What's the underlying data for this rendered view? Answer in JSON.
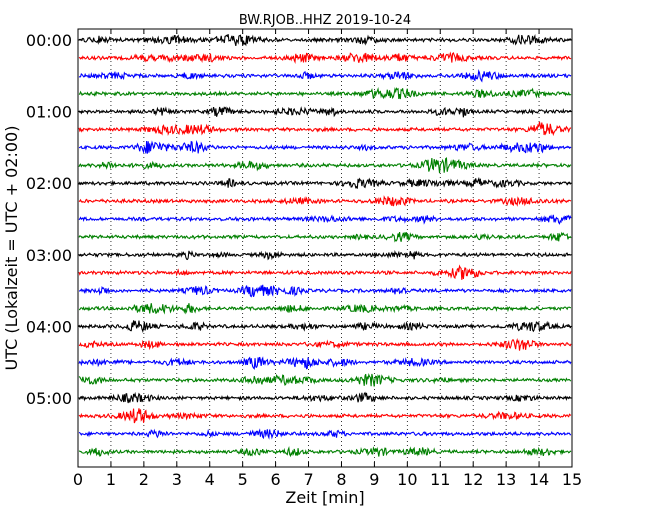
{
  "chart_data": {
    "type": "line",
    "title": "BW.RJOB..HHZ 2019-10-24",
    "xlabel": "Zeit  [min]",
    "ylabel": "UTC (Lokalzeit = UTC + 02:00)",
    "xlim": [
      0,
      15
    ],
    "x_ticks": [
      0,
      1,
      2,
      3,
      4,
      5,
      6,
      7,
      8,
      9,
      10,
      11,
      12,
      13,
      14,
      15
    ],
    "x_tick_labels": [
      "0",
      "1",
      "2",
      "3",
      "4",
      "5",
      "6",
      "7",
      "8",
      "9",
      "10",
      "11",
      "12",
      "13",
      "14",
      "15"
    ],
    "y_tick_labels": [
      "00:00",
      "01:00",
      "02:00",
      "03:00",
      "04:00",
      "05:00"
    ],
    "grid": "vertical dotted lines at each minute",
    "trace_colors": [
      "#000000",
      "#ff0000",
      "#0000ff",
      "#008000"
    ],
    "trace_count": 24,
    "series": [
      {
        "start": "00:00",
        "color": "#000000"
      },
      {
        "start": "00:15",
        "color": "#ff0000"
      },
      {
        "start": "00:30",
        "color": "#0000ff"
      },
      {
        "start": "00:45",
        "color": "#008000"
      },
      {
        "start": "01:00",
        "color": "#000000"
      },
      {
        "start": "01:15",
        "color": "#ff0000"
      },
      {
        "start": "01:30",
        "color": "#0000ff"
      },
      {
        "start": "01:45",
        "color": "#008000"
      },
      {
        "start": "02:00",
        "color": "#000000"
      },
      {
        "start": "02:15",
        "color": "#ff0000"
      },
      {
        "start": "02:30",
        "color": "#0000ff"
      },
      {
        "start": "02:45",
        "color": "#008000"
      },
      {
        "start": "03:00",
        "color": "#000000"
      },
      {
        "start": "03:15",
        "color": "#ff0000"
      },
      {
        "start": "03:30",
        "color": "#0000ff"
      },
      {
        "start": "03:45",
        "color": "#008000"
      },
      {
        "start": "04:00",
        "color": "#000000"
      },
      {
        "start": "04:15",
        "color": "#ff0000"
      },
      {
        "start": "04:30",
        "color": "#0000ff"
      },
      {
        "start": "04:45",
        "color": "#008000"
      },
      {
        "start": "05:00",
        "color": "#000000"
      },
      {
        "start": "05:15",
        "color": "#ff0000"
      },
      {
        "start": "05:30",
        "color": "#0000ff"
      },
      {
        "start": "05:45",
        "color": "#008000"
      }
    ]
  }
}
